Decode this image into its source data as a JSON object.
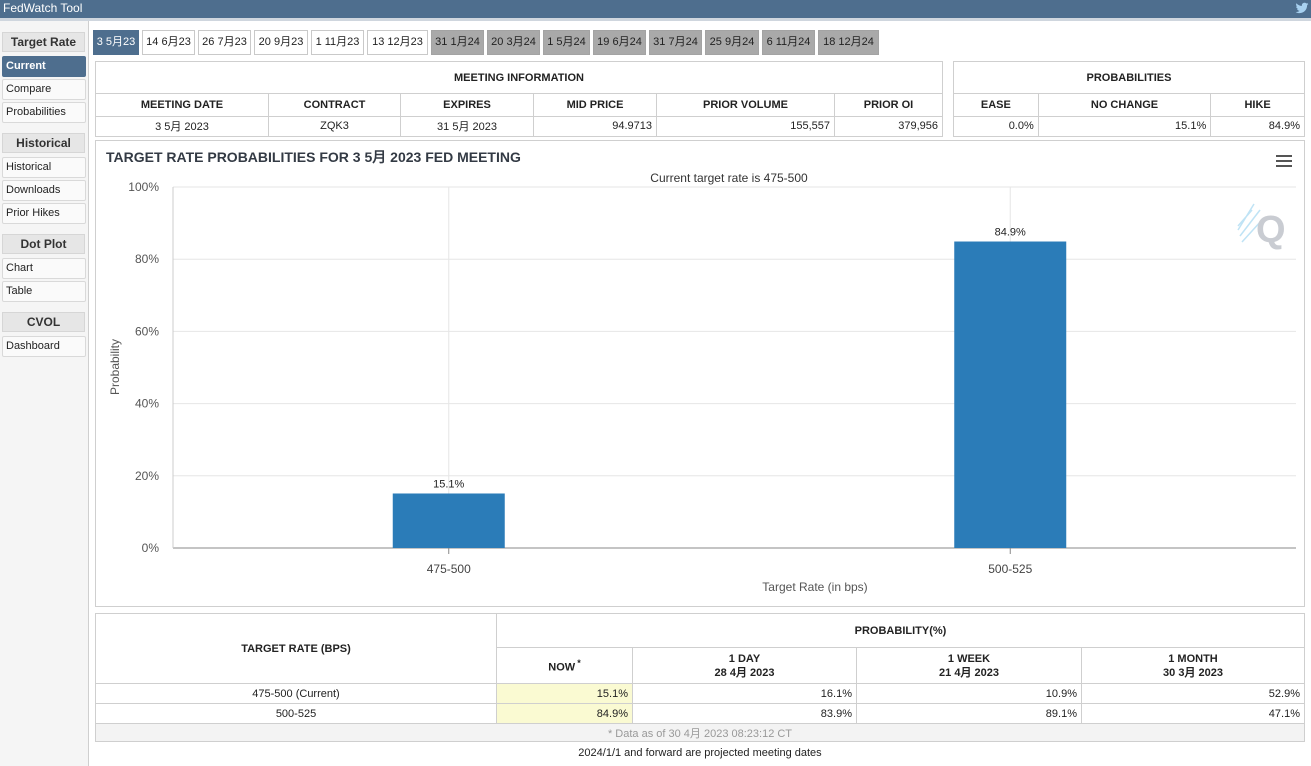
{
  "app": {
    "title": "FedWatch Tool",
    "twitter_icon": "twitter-icon"
  },
  "sidebar": {
    "groups": [
      {
        "heading": "Target Rate",
        "items": [
          "Current",
          "Compare",
          "Probabilities"
        ]
      },
      {
        "heading": "Historical",
        "items": [
          "Historical",
          "Downloads",
          "Prior Hikes"
        ]
      },
      {
        "heading": "Dot Plot",
        "items": [
          "Chart",
          "Table"
        ]
      },
      {
        "heading": "CVOL",
        "items": [
          "Dashboard"
        ]
      }
    ],
    "active": "Current"
  },
  "meeting_tabs": [
    "3 5月23",
    "14 6月23",
    "26 7月23",
    "20 9月23",
    "1 11月23",
    "13 12月23",
    "31 1月24",
    "20 3月24",
    "1 5月24",
    "19 6月24",
    "31 7月24",
    "25 9月24",
    "6 11月24",
    "18 12月24"
  ],
  "selected_tab": "3 5月23",
  "meeting_info": {
    "heading": "MEETING INFORMATION",
    "columns": [
      "MEETING DATE",
      "CONTRACT",
      "EXPIRES",
      "MID PRICE",
      "PRIOR VOLUME",
      "PRIOR OI"
    ],
    "values": [
      "3 5月 2023",
      "ZQK3",
      "31 5月 2023",
      "94.9713",
      "155,557",
      "379,956"
    ]
  },
  "probabilities": {
    "heading": "PROBABILITIES",
    "columns": [
      "EASE",
      "NO CHANGE",
      "HIKE"
    ],
    "values": [
      "0.0%",
      "15.1%",
      "84.9%"
    ]
  },
  "chart_data": {
    "type": "bar",
    "title": "TARGET RATE PROBABILITIES FOR 3 5月 2023 FED MEETING",
    "subtitle": "Current target rate is 475-500",
    "categories": [
      "475-500",
      "500-525"
    ],
    "values": [
      15.1,
      84.9
    ],
    "data_labels": [
      "15.1%",
      "84.9%"
    ],
    "xlabel": "Target Rate (in bps)",
    "ylabel": "Probability",
    "ylim": [
      0,
      100
    ],
    "yticks": [
      "0%",
      "20%",
      "40%",
      "60%",
      "80%",
      "100%"
    ],
    "grid": true,
    "bar_color": "#2b7cb8"
  },
  "prob_table": {
    "target_rate_heading": "TARGET RATE (BPS)",
    "probability_heading": "PROBABILITY(%)",
    "now_label": "NOW",
    "now_marker": "*",
    "periods": [
      {
        "label": "1 DAY",
        "date": "28 4月 2023"
      },
      {
        "label": "1 WEEK",
        "date": "21 4月 2023"
      },
      {
        "label": "1 MONTH",
        "date": "30 3月 2023"
      }
    ],
    "rows": [
      {
        "rate": "475-500 (Current)",
        "now": "15.1%",
        "day": "16.1%",
        "week": "10.9%",
        "month": "52.9%"
      },
      {
        "rate": "500-525",
        "now": "84.9%",
        "day": "83.9%",
        "week": "89.1%",
        "month": "47.1%"
      }
    ],
    "data_as_of": "* Data as of 30 4月 2023 08:23:12 CT"
  },
  "footer_note": "2024/1/1 and forward are projected meeting dates",
  "colors": {
    "header_bg": "#4e6e8e",
    "highlight_now": "#fafad2",
    "tab_gray": "#a9a9a9"
  }
}
